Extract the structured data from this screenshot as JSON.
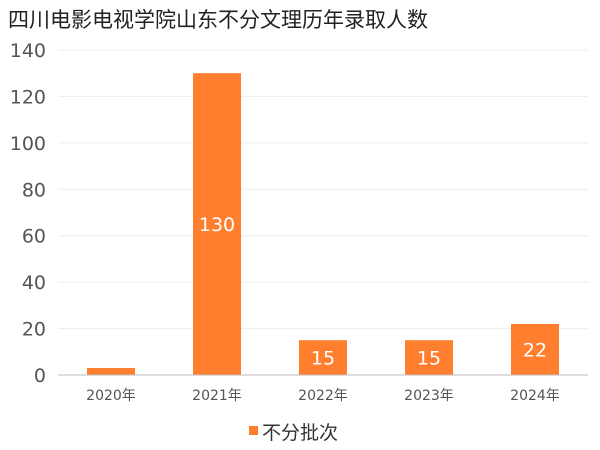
{
  "chart_data": {
    "type": "bar",
    "title": "四川电影电视学院山东不分文理历年录取人数",
    "categories": [
      "2020年",
      "2021年",
      "2022年",
      "2023年",
      "2024年"
    ],
    "series": [
      {
        "name": "不分批次",
        "color": "#ff7f2e",
        "values": [
          3,
          130,
          15,
          15,
          22
        ],
        "labels": [
          "",
          "130",
          "15",
          "15",
          "22"
        ]
      }
    ],
    "ylim": [
      0,
      140
    ],
    "yticks": [
      0,
      20,
      40,
      60,
      80,
      100,
      120,
      140
    ],
    "grid": true,
    "legend_position": "bottom"
  }
}
